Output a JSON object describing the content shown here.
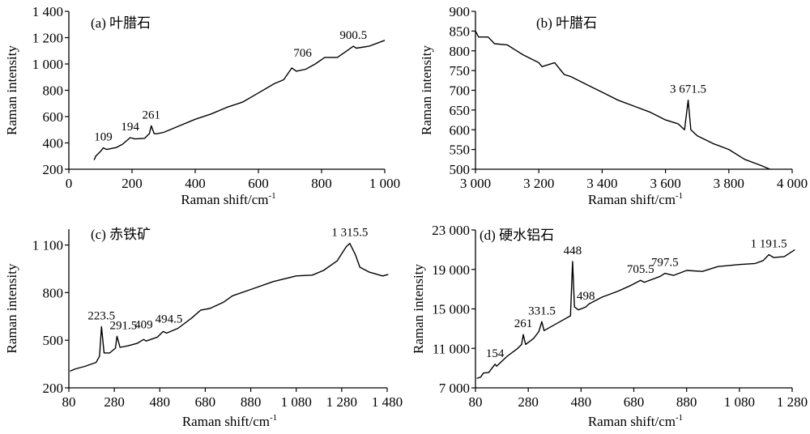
{
  "chart_data": [
    {
      "type": "line",
      "title": "(a) 叶腊石",
      "xlabel": "Raman shift/cm",
      "xlabel_sup": "-1",
      "ylabel": "Raman intensity",
      "xlim": [
        0,
        1000
      ],
      "ylim": [
        200,
        1400
      ],
      "xticks": [
        0,
        200,
        400,
        600,
        800,
        1000
      ],
      "xtick_labels": [
        "0",
        "200",
        "400",
        "600",
        "800",
        "1 000"
      ],
      "yticks": [
        200,
        400,
        600,
        800,
        1000,
        1200,
        1400
      ],
      "ytick_labels": [
        "200",
        "400",
        "600",
        "800",
        "1 000",
        "1 200",
        "1 400"
      ],
      "grid": false,
      "x": [
        80,
        85,
        100,
        109,
        120,
        150,
        170,
        194,
        210,
        240,
        255,
        261,
        270,
        280,
        300,
        350,
        400,
        450,
        500,
        550,
        600,
        650,
        680,
        706,
        720,
        750,
        780,
        810,
        850,
        880,
        900.5,
        910,
        950,
        1000
      ],
      "y": [
        270,
        300,
        335,
        362,
        350,
        365,
        390,
        440,
        430,
        435,
        470,
        530,
        470,
        470,
        480,
        530,
        580,
        620,
        670,
        710,
        780,
        850,
        880,
        970,
        945,
        960,
        1000,
        1050,
        1050,
        1100,
        1135,
        1120,
        1135,
        1180
      ],
      "annotations": [
        {
          "text": "109",
          "x": 109,
          "y": 362
        },
        {
          "text": "194",
          "x": 194,
          "y": 440
        },
        {
          "text": "261",
          "x": 261,
          "y": 530
        },
        {
          "text": "706",
          "x": 740,
          "y": 1000
        },
        {
          "text": "900.5",
          "x": 900.5,
          "y": 1135
        }
      ]
    },
    {
      "type": "line",
      "title": "(b) 叶腊石",
      "xlabel": "Raman shift/cm",
      "xlabel_sup": "-1",
      "ylabel": "Raman intensity",
      "xlim": [
        3000,
        4000
      ],
      "ylim": [
        500,
        900
      ],
      "xticks": [
        3000,
        3200,
        3400,
        3600,
        3800,
        4000
      ],
      "xtick_labels": [
        "3 000",
        "3 200",
        "3 400",
        "3 600",
        "3 800",
        "4 000"
      ],
      "yticks": [
        500,
        550,
        600,
        650,
        700,
        750,
        800,
        850,
        900
      ],
      "ytick_labels": [
        "500",
        "550",
        "600",
        "650",
        "700",
        "750",
        "800",
        "850",
        "900"
      ],
      "grid": false,
      "x": [
        3000,
        3010,
        3040,
        3060,
        3100,
        3150,
        3200,
        3210,
        3250,
        3280,
        3300,
        3350,
        3400,
        3450,
        3500,
        3550,
        3600,
        3640,
        3660,
        3671.5,
        3680,
        3700,
        3750,
        3800,
        3850,
        3900,
        3930
      ],
      "y": [
        850,
        835,
        835,
        818,
        815,
        790,
        770,
        760,
        770,
        740,
        735,
        715,
        695,
        675,
        660,
        645,
        625,
        615,
        600,
        675,
        600,
        585,
        565,
        550,
        525,
        510,
        500
      ],
      "annotations": [
        {
          "text": "3 671.5",
          "x": 3671.5,
          "y": 675
        }
      ]
    },
    {
      "type": "line",
      "title": "(c) 赤铁矿",
      "xlabel": "Raman shift/cm",
      "xlabel_sup": "-1",
      "ylabel": "Raman intensity",
      "xlim": [
        80,
        1480
      ],
      "ylim": [
        200,
        1200
      ],
      "xticks": [
        80,
        280,
        480,
        680,
        880,
        1080,
        1280,
        1480
      ],
      "xtick_labels": [
        "80",
        "280",
        "480",
        "680",
        "880",
        "1 080",
        "1 280",
        "1 480"
      ],
      "yticks": [
        200,
        500,
        800,
        1100
      ],
      "ytick_labels": [
        "200",
        "500",
        "800",
        "1 100"
      ],
      "grid": false,
      "x": [
        85,
        110,
        150,
        200,
        215,
        223.5,
        235,
        260,
        285,
        291.5,
        305,
        340,
        380,
        409,
        420,
        470,
        494.5,
        510,
        560,
        620,
        660,
        700,
        760,
        800,
        880,
        980,
        1080,
        1150,
        1200,
        1260,
        1300,
        1315.5,
        1340,
        1360,
        1400,
        1460,
        1485
      ],
      "y": [
        305,
        320,
        335,
        360,
        400,
        585,
        420,
        420,
        450,
        525,
        455,
        465,
        480,
        505,
        495,
        520,
        555,
        545,
        575,
        640,
        690,
        700,
        740,
        780,
        820,
        870,
        905,
        910,
        940,
        1000,
        1090,
        1110,
        1040,
        960,
        930,
        905,
        915
      ],
      "annotations": [
        {
          "text": "223.5",
          "x": 223.5,
          "y": 585
        },
        {
          "text": "291.5",
          "x": 320,
          "y": 525
        },
        {
          "text": "409",
          "x": 409,
          "y": 530
        },
        {
          "text": "494.5",
          "x": 520,
          "y": 565
        },
        {
          "text": "1 315.5",
          "x": 1315.5,
          "y": 1110
        }
      ]
    },
    {
      "type": "line",
      "title": "(d) 硬水铝石",
      "xlabel": "Raman shift/cm",
      "xlabel_sup": "-1",
      "ylabel": "Raman intensity",
      "xlim": [
        80,
        1280
      ],
      "ylim": [
        7000,
        23000
      ],
      "xticks": [
        80,
        280,
        480,
        680,
        880,
        1080,
        1280
      ],
      "xtick_labels": [
        "80",
        "280",
        "480",
        "680",
        "880",
        "1 080",
        "1 280"
      ],
      "yticks": [
        7000,
        11000,
        15000,
        19000,
        23000
      ],
      "ytick_labels": [
        "7 000",
        "11 000",
        "15 000",
        "19 000",
        "23 000"
      ],
      "grid": false,
      "x": [
        85,
        100,
        110,
        130,
        154,
        160,
        200,
        240,
        255,
        261,
        270,
        300,
        320,
        331.5,
        340,
        400,
        440,
        448,
        455,
        470,
        498,
        510,
        560,
        620,
        670,
        705.5,
        720,
        780,
        797.5,
        830,
        880,
        940,
        1000,
        1080,
        1140,
        1170,
        1191.5,
        1210,
        1250,
        1290
      ],
      "y": [
        7950,
        8100,
        8500,
        8550,
        9400,
        9200,
        10200,
        11000,
        11400,
        12400,
        11400,
        12000,
        12700,
        13700,
        12800,
        13700,
        14300,
        19800,
        15200,
        14900,
        15200,
        15500,
        16200,
        16800,
        17400,
        17900,
        17700,
        18300,
        18600,
        18400,
        18900,
        18800,
        19300,
        19500,
        19600,
        19900,
        20500,
        20200,
        20300,
        21000
      ],
      "annotations": [
        {
          "text": "154",
          "x": 154,
          "y": 9400
        },
        {
          "text": "261",
          "x": 261,
          "y": 12400
        },
        {
          "text": "331.5",
          "x": 331.5,
          "y": 13700
        },
        {
          "text": "448",
          "x": 448,
          "y": 19800
        },
        {
          "text": "498",
          "x": 498,
          "y": 15200
        },
        {
          "text": "705.5",
          "x": 705.5,
          "y": 17900
        },
        {
          "text": "797.5",
          "x": 797.5,
          "y": 18600
        },
        {
          "text": "1 191.5",
          "x": 1191.5,
          "y": 20500
        }
      ]
    }
  ]
}
